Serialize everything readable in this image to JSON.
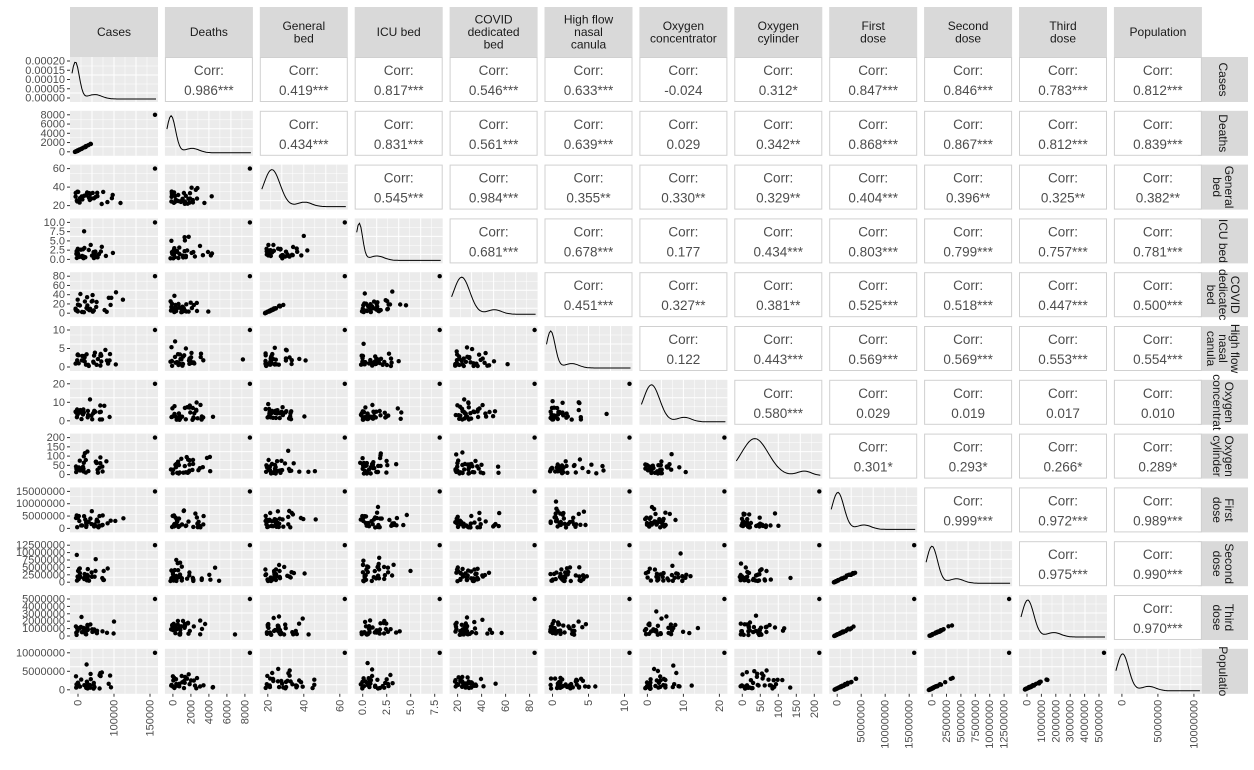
{
  "chart_data": {
    "type": "scatter",
    "title": "",
    "variables": [
      "Cases",
      "Deaths",
      "General\nbed",
      "ICU bed",
      "COVID\ndedicated\nbed",
      "High flow\nnasal\ncanula",
      "Oxygen\nconcentrator",
      "Oxygen\ncylinder",
      "First\ndose",
      "Second\ndose",
      "Third\ndose",
      "Population"
    ],
    "row_strip_labels": [
      "Cases",
      "Deaths",
      "General\nbed",
      "ICU bed",
      "COVID\ndedicatec\nbed",
      "High flow\nnasal\ncanula",
      "Oxygen\nconcentrat",
      "Oxygen\ncylinder",
      "First\ndose",
      "Second\ndose",
      "Third\ndose",
      "Populatio"
    ],
    "correlation_label": "Corr:",
    "correlations": [
      [
        "",
        "0.986***",
        "0.419***",
        "0.817***",
        "0.546***",
        "0.633***",
        "-0.024",
        "0.312*",
        "0.847***",
        "0.846***",
        "0.783***",
        "0.812***"
      ],
      [
        "",
        "",
        "0.434***",
        "0.831***",
        "0.561***",
        "0.639***",
        "0.029",
        "0.342**",
        "0.868***",
        "0.867***",
        "0.812***",
        "0.839***"
      ],
      [
        "",
        "",
        "",
        "0.545***",
        "0.984***",
        "0.355**",
        "0.330**",
        "0.329**",
        "0.404***",
        "0.396**",
        "0.325**",
        "0.382**"
      ],
      [
        "",
        "",
        "",
        "",
        "0.681***",
        "0.678***",
        "0.177",
        "0.434***",
        "0.803***",
        "0.799***",
        "0.757***",
        "0.781***"
      ],
      [
        "",
        "",
        "",
        "",
        "",
        "0.451***",
        "0.327**",
        "0.381**",
        "0.525***",
        "0.518***",
        "0.447***",
        "0.500***"
      ],
      [
        "",
        "",
        "",
        "",
        "",
        "",
        "0.122",
        "0.443***",
        "0.569***",
        "0.569***",
        "0.553***",
        "0.554***"
      ],
      [
        "",
        "",
        "",
        "",
        "",
        "",
        "",
        "0.580***",
        "0.029",
        "0.019",
        "0.017",
        "0.010"
      ],
      [
        "",
        "",
        "",
        "",
        "",
        "",
        "",
        "",
        "0.301*",
        "0.293*",
        "0.266*",
        "0.289*"
      ],
      [
        "",
        "",
        "",
        "",
        "",
        "",
        "",
        "",
        "",
        "0.999***",
        "0.972***",
        "0.989***"
      ],
      [
        "",
        "",
        "",
        "",
        "",
        "",
        "",
        "",
        "",
        "",
        "0.975***",
        "0.990***"
      ],
      [
        "",
        "",
        "",
        "",
        "",
        "",
        "",
        "",
        "",
        "",
        "",
        "0.970***"
      ],
      [
        "",
        "",
        "",
        "",
        "",
        "",
        "",
        "",
        "",
        "",
        "",
        ""
      ]
    ],
    "y_ticks": [
      [
        "0.00000",
        "0.00005",
        "0.00010",
        "0.00015",
        "0.00020"
      ],
      [
        "0",
        "2000",
        "4000",
        "6000",
        "8000"
      ],
      [
        "20",
        "40",
        "60"
      ],
      [
        "0.0",
        "2.5",
        "5.0",
        "7.5",
        "10.0"
      ],
      [
        "0",
        "20",
        "40",
        "60",
        "80"
      ],
      [
        "0",
        "5",
        "10"
      ],
      [
        "0",
        "10",
        "20"
      ],
      [
        "0",
        "50",
        "100",
        "150",
        "200"
      ],
      [
        "0",
        "5000000",
        "10000000",
        "15000000"
      ],
      [
        "0",
        "2500000",
        "5000000",
        "7500000",
        "10000000",
        "12500000"
      ],
      [
        "0",
        "1000000",
        "2000000",
        "3000000",
        "4000000",
        "5000000"
      ],
      [
        "0",
        "5000000",
        "10000000"
      ]
    ],
    "x_ticks": [
      [
        "0",
        "100000",
        "150000"
      ],
      [
        "0",
        "2000",
        "4000",
        "6000",
        "8000"
      ],
      [
        "20",
        "40",
        "60"
      ],
      [
        "0.0",
        "2.5",
        "5.0",
        "7.5"
      ],
      [
        "20",
        "40",
        "60",
        "80"
      ],
      [
        "0",
        "5",
        "10"
      ],
      [
        "0",
        "10",
        "20"
      ],
      [
        "0",
        "50",
        "100",
        "150",
        "200"
      ],
      [
        "0",
        "5000000",
        "10000000",
        "15000000"
      ],
      [
        "0",
        "2500000",
        "5000000",
        "7500000",
        "10000000",
        "12500000"
      ],
      [
        "0",
        "1000000",
        "2000000",
        "3000000",
        "4000000",
        "5000000"
      ],
      [
        "0",
        "5000000",
        "10000000"
      ]
    ],
    "lower_panels": "scatter",
    "diagonal_panels": "density",
    "upper_panels": "correlation",
    "grid": true,
    "colors": {
      "strip_bg": "#d9d9d9",
      "panel_bg": "#ebebeb",
      "grid": "#ffffff",
      "point": "#000000",
      "corr_text": "#4d4d4d",
      "axis_text": "#4d4d4d"
    }
  }
}
